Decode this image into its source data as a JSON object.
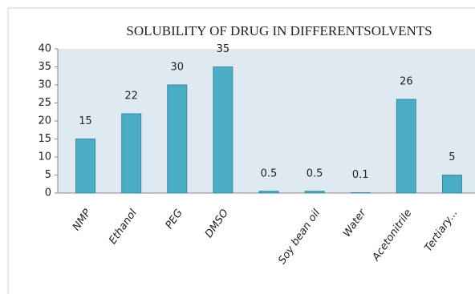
{
  "chart_data": {
    "type": "bar",
    "title": "SOLUBILITY OF DRUG IN DIFFERENTSOLVENTS",
    "categories": [
      "NMP",
      "Ethanol",
      "PEG",
      "DMSO",
      null,
      "Soy bean oil",
      "Water",
      "Acetonitrile",
      "Tertiary..."
    ],
    "values": [
      15,
      22,
      30,
      35,
      0.5,
      0.5,
      0.1,
      26,
      5
    ],
    "color": "#4bacc6",
    "ylim": [
      0,
      40
    ],
    "yticks": [
      0,
      5,
      10,
      15,
      20,
      25,
      30,
      35,
      40
    ],
    "grid": false
  }
}
